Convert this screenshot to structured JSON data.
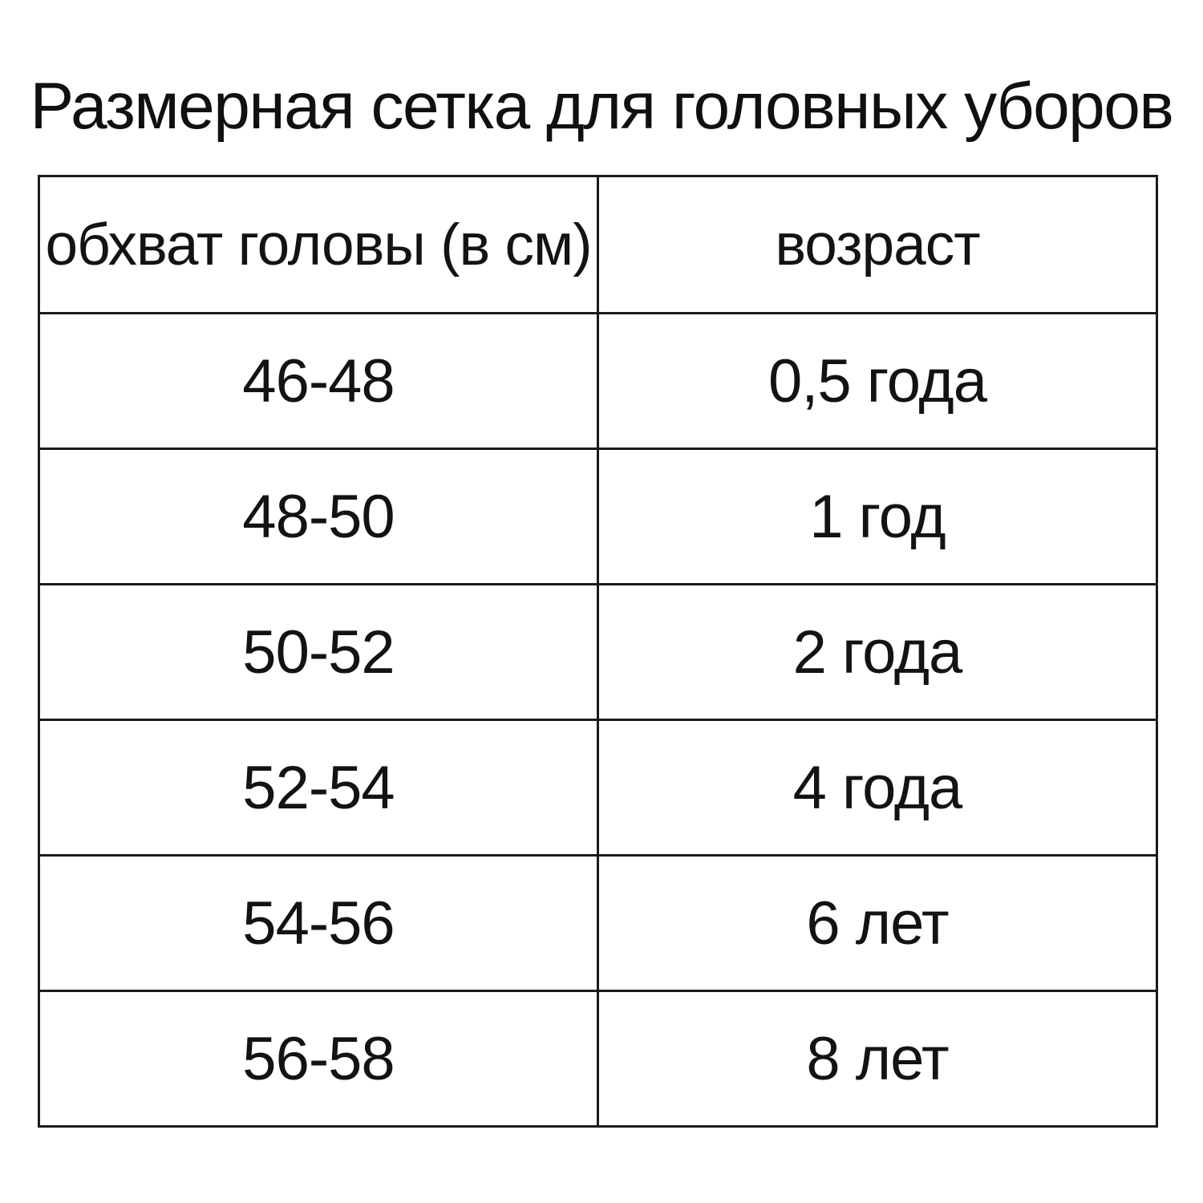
{
  "title": "Размерная сетка для головных уборов",
  "table": {
    "headers": [
      "обхват головы (в см)",
      "возраст"
    ],
    "rows": [
      [
        "46-48",
        "0,5 года"
      ],
      [
        "48-50",
        "1 год"
      ],
      [
        "50-52",
        "2 года"
      ],
      [
        "52-54",
        "4 года"
      ],
      [
        "54-56",
        "6 лет"
      ],
      [
        "56-58",
        "8 лет"
      ]
    ]
  },
  "colors": {
    "background": "#ffffff",
    "text": "#131313",
    "border": "#1b1b1b"
  }
}
